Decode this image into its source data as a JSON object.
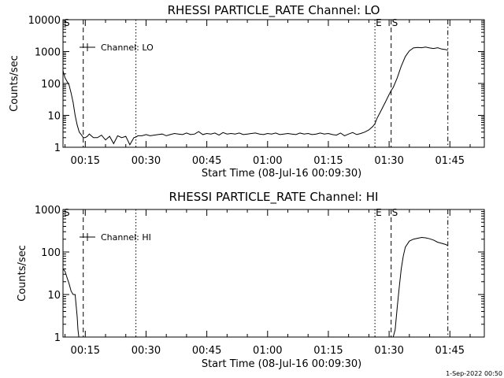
{
  "footer": {
    "date": "1-Sep-2022 00:50"
  },
  "chart_data": [
    {
      "type": "line",
      "title": "RHESSI PARTICLE_RATE Channel: LO",
      "xlabel": "Start Time (08-Jul-16 00:09:30)",
      "ylabel": "Counts/sec",
      "yscale": "log",
      "xlim": [
        9.5,
        113.5
      ],
      "ylim": [
        1,
        10000
      ],
      "xticks": [
        15,
        30,
        45,
        60,
        75,
        90,
        105
      ],
      "xtick_labels": [
        "00:15",
        "00:30",
        "00:45",
        "01:00",
        "01:15",
        "01:30",
        "01:45"
      ],
      "yticks": [
        1,
        10,
        100,
        1000,
        10000
      ],
      "ytick_labels": [
        "1",
        "10",
        "100",
        "1000",
        "10000"
      ],
      "legend": {
        "label": "Channel: LO",
        "location": "top-left"
      },
      "markers": [
        {
          "x": 9.5,
          "style": "dashed",
          "label": "S"
        },
        {
          "x": 14.5,
          "style": "dashed",
          "label": ""
        },
        {
          "x": 27.5,
          "style": "dotted",
          "label": ""
        },
        {
          "x": 86.5,
          "style": "dotted",
          "label": "E"
        },
        {
          "x": 90.5,
          "style": "dashed",
          "label": "S"
        },
        {
          "x": 104.5,
          "style": "dashdot",
          "label": ""
        }
      ],
      "series": [
        {
          "name": "",
          "x": [
            9.5,
            10,
            11,
            11.5,
            12,
            12.5,
            13,
            13.5,
            14,
            14.5,
            15,
            15.5,
            16,
            17,
            18,
            19,
            20,
            21,
            22,
            23,
            24,
            25,
            26,
            27,
            27.5,
            28,
            29,
            30,
            31,
            32,
            33,
            34,
            35,
            36,
            37,
            38,
            39,
            40,
            41,
            42,
            43,
            44,
            45,
            46,
            47,
            48,
            49,
            50,
            51,
            52,
            53,
            54,
            55,
            56,
            57,
            58,
            59,
            60,
            61,
            62,
            63,
            64,
            65,
            66,
            67,
            68,
            69,
            70,
            71,
            72,
            73,
            74,
            75,
            76,
            77,
            78,
            79,
            80,
            81,
            82,
            83,
            84,
            85,
            86,
            86.5,
            87,
            88,
            89,
            90,
            90.5,
            91,
            92,
            93,
            94,
            95,
            96,
            97,
            98,
            99,
            100,
            101,
            102,
            103,
            104,
            104.5
          ],
          "y": [
            250,
            150,
            90,
            50,
            25,
            10,
            5,
            3,
            2.5,
            2,
            2,
            2.2,
            2.6,
            2,
            2,
            2.4,
            1.7,
            2.2,
            1.3,
            2.3,
            2,
            2.2,
            1.2,
            2,
            2.1,
            2.3,
            2.3,
            2.5,
            2.3,
            2.4,
            2.5,
            2.6,
            2.3,
            2.5,
            2.7,
            2.6,
            2.5,
            2.8,
            2.5,
            2.6,
            3.1,
            2.5,
            2.7,
            2.6,
            2.8,
            2.4,
            2.9,
            2.6,
            2.7,
            2.6,
            2.8,
            2.5,
            2.6,
            2.7,
            2.8,
            2.6,
            2.5,
            2.7,
            2.6,
            2.8,
            2.5,
            2.6,
            2.7,
            2.6,
            2.5,
            2.8,
            2.6,
            2.7,
            2.5,
            2.6,
            2.8,
            2.6,
            2.7,
            2.5,
            2.4,
            2.8,
            2.3,
            2.6,
            2.9,
            2.5,
            2.7,
            3,
            3.5,
            4.5,
            5.5,
            8,
            14,
            25,
            45,
            60,
            75,
            150,
            350,
            700,
            1050,
            1300,
            1350,
            1320,
            1380,
            1300,
            1250,
            1320,
            1200,
            1150,
            1100
          ]
        }
      ]
    },
    {
      "type": "line",
      "title": "RHESSI PARTICLE_RATE Channel: HI",
      "xlabel": "Start Time (08-Jul-16 00:09:30)",
      "ylabel": "Counts/sec",
      "yscale": "log",
      "xlim": [
        9.5,
        113.5
      ],
      "ylim": [
        1,
        1000
      ],
      "xticks": [
        15,
        30,
        45,
        60,
        75,
        90,
        105
      ],
      "xtick_labels": [
        "00:15",
        "00:30",
        "00:45",
        "01:00",
        "01:15",
        "01:30",
        "01:45"
      ],
      "yticks": [
        1,
        10,
        100,
        1000
      ],
      "ytick_labels": [
        "1",
        "10",
        "100",
        "1000"
      ],
      "legend": {
        "label": "Channel: HI",
        "location": "top-left"
      },
      "markers": [
        {
          "x": 9.5,
          "style": "dashed",
          "label": "S"
        },
        {
          "x": 14.5,
          "style": "dashed",
          "label": ""
        },
        {
          "x": 27.5,
          "style": "dotted",
          "label": ""
        },
        {
          "x": 86.5,
          "style": "dotted",
          "label": "E"
        },
        {
          "x": 90.5,
          "style": "dashed",
          "label": "S"
        },
        {
          "x": 104.5,
          "style": "dashdot",
          "label": ""
        }
      ],
      "series": [
        {
          "name": "",
          "x": [
            9.5,
            10,
            10.5,
            11,
            11.5,
            12,
            12.5,
            13,
            13.2,
            13.4,
            91,
            91.5,
            92,
            92.5,
            93,
            93.5,
            94,
            95,
            96,
            97,
            98,
            99,
            100,
            101,
            102,
            103,
            104,
            104.5
          ],
          "y": [
            40,
            35,
            25,
            18,
            12,
            10,
            10,
            3,
            1.5,
            1,
            1,
            1.5,
            5,
            15,
            40,
            80,
            130,
            180,
            200,
            210,
            220,
            215,
            205,
            190,
            170,
            160,
            150,
            140
          ]
        }
      ]
    }
  ]
}
